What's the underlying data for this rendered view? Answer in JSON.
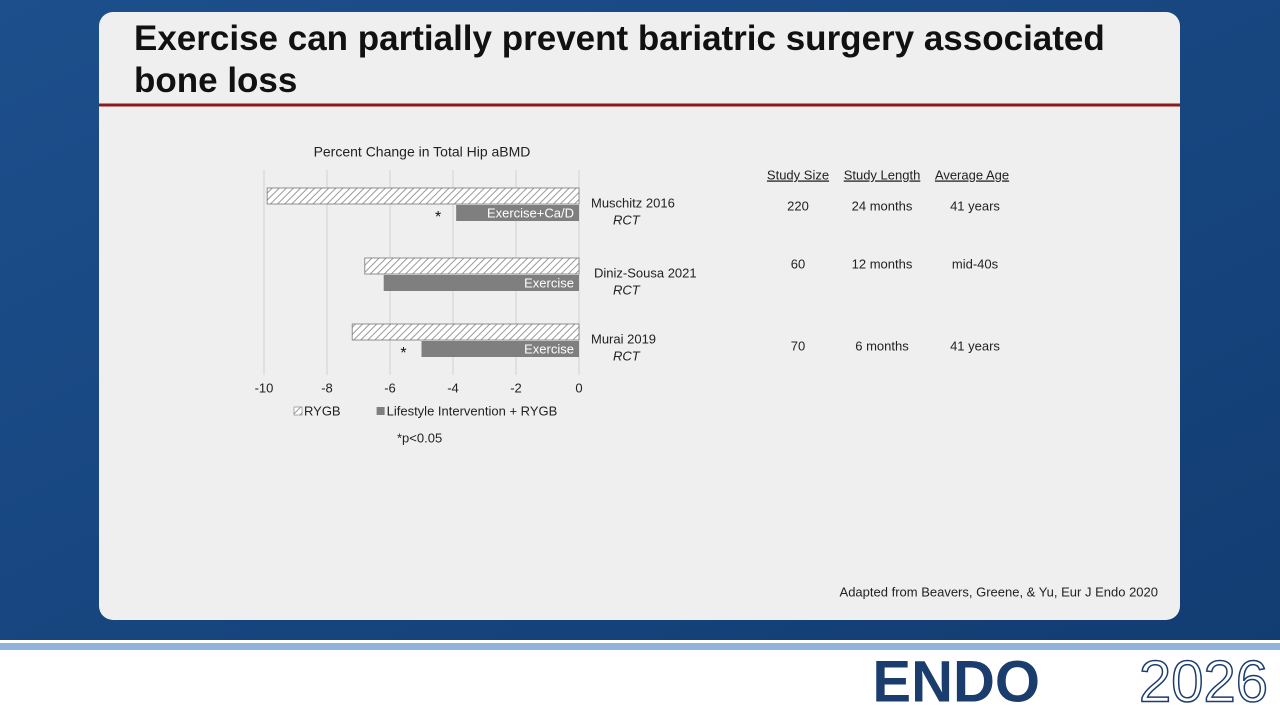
{
  "slide": {
    "title": "Exercise can partially prevent bariatric surgery associated bone loss",
    "table": {
      "headers": [
        "Study Size",
        "Study Length",
        "Average Age"
      ],
      "rows": [
        [
          220,
          "24 months",
          "41 years"
        ],
        [
          60,
          "12 months",
          "mid-40s"
        ],
        [
          70,
          "6 months",
          "41 years"
        ]
      ]
    },
    "citation": "Adapted from Beavers, Greene, & Yu, Eur J Endo 2020",
    "logo": {
      "brand": "ENDO",
      "year": "2026"
    }
  },
  "chart_data": {
    "type": "bar",
    "orientation": "horizontal",
    "title": "Percent Change in Total Hip aBMD",
    "categories": [
      "Muschitz 2016",
      "Diniz-Sousa 2021",
      "Murai 2019"
    ],
    "category_notes": [
      "RCT",
      "RCT",
      "RCT"
    ],
    "series": [
      {
        "name": "RYGB",
        "color": "#d9d9d9",
        "pattern": "hatch",
        "values": [
          -9.9,
          -6.8,
          -7.2
        ]
      },
      {
        "name": "Lifestyle Intervention + RYGB",
        "color": "#7f7f7f",
        "values": [
          -3.9,
          -6.2,
          -5.0
        ],
        "bar_labels": [
          "Exercise+Ca/D",
          "Exercise",
          "Exercise"
        ]
      }
    ],
    "significance": [
      "*",
      null,
      "*"
    ],
    "footnote": "*p<0.05",
    "xlim": [
      -10,
      0
    ],
    "xticks": [
      -10,
      -8,
      -6,
      -4,
      -2,
      0
    ],
    "grid": true,
    "legend": "bottom"
  }
}
